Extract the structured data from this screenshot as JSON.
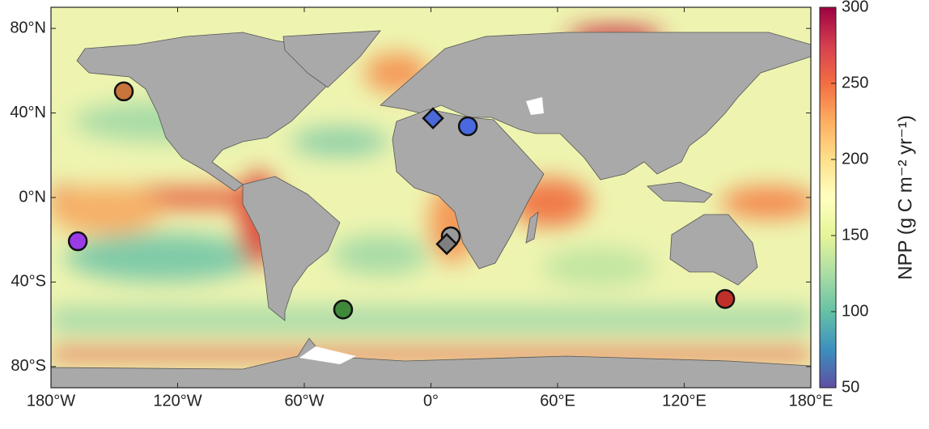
{
  "chart_data": {
    "type": "map",
    "xlim": [
      -180,
      180
    ],
    "ylim": [
      -90,
      90
    ],
    "xticks": [
      {
        "value": -180,
        "label": "180°W"
      },
      {
        "value": -120,
        "label": "120°W"
      },
      {
        "value": -60,
        "label": "60°W"
      },
      {
        "value": 0,
        "label": "0°"
      },
      {
        "value": 60,
        "label": "60°E"
      },
      {
        "value": 120,
        "label": "120°E"
      },
      {
        "value": 180,
        "label": "180°E"
      }
    ],
    "yticks": [
      {
        "value": 80,
        "label": "80°N"
      },
      {
        "value": 40,
        "label": "40°N"
      },
      {
        "value": 0,
        "label": "0°N"
      },
      {
        "value": -40,
        "label": "40°S"
      },
      {
        "value": -80,
        "label": "80°S"
      }
    ],
    "colorbar": {
      "label": "NPP (g C m⁻² yr⁻¹)",
      "lim": [
        50,
        300
      ],
      "ticks": [
        50,
        100,
        150,
        200,
        250,
        300
      ],
      "colormap": [
        "#5e4fa2",
        "#3c8fbf",
        "#66c2a5",
        "#abdda4",
        "#e6f598",
        "#ffffbf",
        "#fee08b",
        "#fdae61",
        "#f46d43",
        "#d53e4f",
        "#9e0142"
      ]
    },
    "markers": [
      {
        "shape": "circle",
        "color": "#c8743a",
        "lon": -145.5,
        "lat": 50.2
      },
      {
        "shape": "diamond",
        "color": "#4a68d8",
        "lon": 1,
        "lat": 37.5
      },
      {
        "shape": "circle",
        "color": "#4a68e0",
        "lon": 17.5,
        "lat": 33.7
      },
      {
        "shape": "circle",
        "color": "#9b3be8",
        "lon": -167.3,
        "lat": -20.7
      },
      {
        "shape": "circle",
        "color": "#9a9a9a",
        "lon": 9.4,
        "lat": -18.4
      },
      {
        "shape": "diamond",
        "color": "#7f7f7f",
        "lon": 7.5,
        "lat": -22
      },
      {
        "shape": "circle",
        "color": "#3f8a3a",
        "lon": -41.6,
        "lat": -53
      },
      {
        "shape": "circle",
        "color": "#c0302a",
        "lon": 139.4,
        "lat": -48
      }
    ]
  }
}
